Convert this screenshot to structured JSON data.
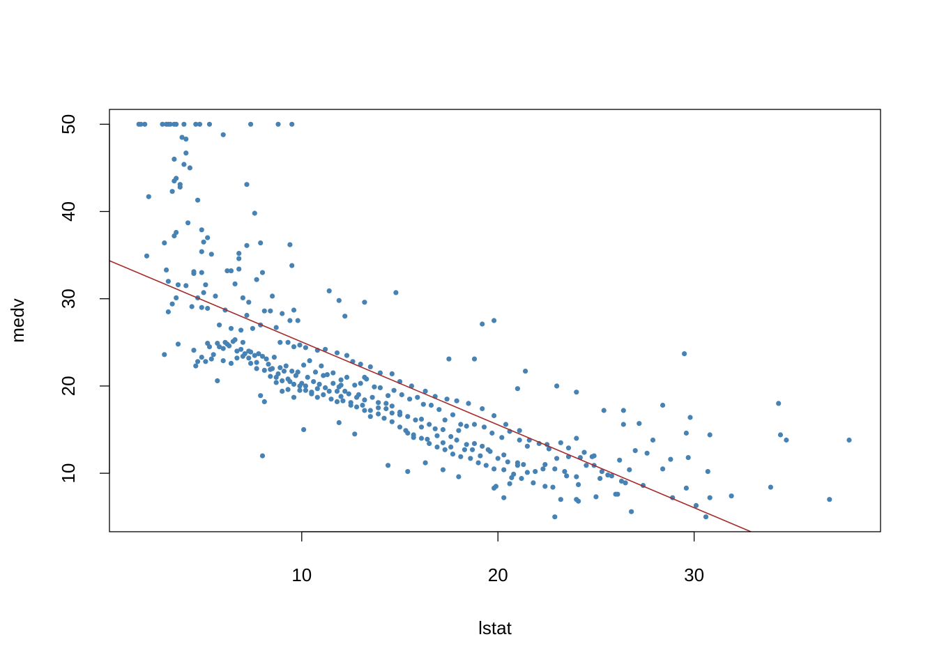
{
  "chart_data": {
    "type": "scatter",
    "title": "",
    "xlabel": "lstat",
    "ylabel": "medv",
    "xlim": [
      0.2,
      39.5
    ],
    "ylim": [
      3.3,
      51.7
    ],
    "x_ticks": [
      10,
      20,
      30
    ],
    "y_ticks": [
      10,
      20,
      30,
      40,
      50
    ],
    "grid": false,
    "legend": "none",
    "point_color": "#4682B4",
    "line_color": "#A52A2A",
    "regression_line": {
      "intercept": 34.55,
      "slope": -0.95
    },
    "points": [
      [
        1.7,
        50
      ],
      [
        1.8,
        50
      ],
      [
        2.0,
        50
      ],
      [
        2.9,
        50
      ],
      [
        3.1,
        50
      ],
      [
        3.2,
        50
      ],
      [
        3.3,
        50
      ],
      [
        3.5,
        50
      ],
      [
        3.6,
        50
      ],
      [
        4.0,
        50
      ],
      [
        4.6,
        50
      ],
      [
        4.8,
        50
      ],
      [
        5.3,
        50
      ],
      [
        7.4,
        50
      ],
      [
        8.8,
        50
      ],
      [
        9.5,
        50
      ],
      [
        6.0,
        48.8
      ],
      [
        3.9,
        48.5
      ],
      [
        4.1,
        48.3
      ],
      [
        4.1,
        46.7
      ],
      [
        3.5,
        46.0
      ],
      [
        4.3,
        45.0
      ],
      [
        4.0,
        45.4
      ],
      [
        3.6,
        43.8
      ],
      [
        3.5,
        43.5
      ],
      [
        3.8,
        43.1
      ],
      [
        3.8,
        42.8
      ],
      [
        3.4,
        42.3
      ],
      [
        2.2,
        41.7
      ],
      [
        4.7,
        41.3
      ],
      [
        7.2,
        43.1
      ],
      [
        3.6,
        37.6
      ],
      [
        3.5,
        37.2
      ],
      [
        4.2,
        38.7
      ],
      [
        7.6,
        39.8
      ],
      [
        4.9,
        37.9
      ],
      [
        5.2,
        37.0
      ],
      [
        5.0,
        36.5
      ],
      [
        7.9,
        36.4
      ],
      [
        7.2,
        36.1
      ],
      [
        9.4,
        36.2
      ],
      [
        3.0,
        36.4
      ],
      [
        2.1,
        34.9
      ],
      [
        4.9,
        35.4
      ],
      [
        5.4,
        35.1
      ],
      [
        6.8,
        35.2
      ],
      [
        6.8,
        34.6
      ],
      [
        8.0,
        33.0
      ],
      [
        9.5,
        33.8
      ],
      [
        3.1,
        33.3
      ],
      [
        4.5,
        33.1
      ],
      [
        4.5,
        32.9
      ],
      [
        4.9,
        33.0
      ],
      [
        6.2,
        33.2
      ],
      [
        6.4,
        33.2
      ],
      [
        6.8,
        33.4
      ],
      [
        7.7,
        32.2
      ],
      [
        3.2,
        32.0
      ],
      [
        3.7,
        31.6
      ],
      [
        4.1,
        31.5
      ],
      [
        5.1,
        31.6
      ],
      [
        6.6,
        31.7
      ],
      [
        5.0,
        30.7
      ],
      [
        5.6,
        30.3
      ],
      [
        3.6,
        30.1
      ],
      [
        4.7,
        30.1
      ],
      [
        3.4,
        29.4
      ],
      [
        4.9,
        29.0
      ],
      [
        6.1,
        28.7
      ],
      [
        7.2,
        28.1
      ],
      [
        8.1,
        28.6
      ],
      [
        8.4,
        28.6
      ],
      [
        7.0,
        30.1
      ],
      [
        7.3,
        29.6
      ],
      [
        9.6,
        28.7
      ],
      [
        9.0,
        28.3
      ],
      [
        9.8,
        27.5
      ],
      [
        11.4,
        30.9
      ],
      [
        11.9,
        29.8
      ],
      [
        13.2,
        29.6
      ],
      [
        14.8,
        30.7
      ],
      [
        12.2,
        28.0
      ],
      [
        8.5,
        30.3
      ],
      [
        7.9,
        27.0
      ],
      [
        9.4,
        27.5
      ],
      [
        3.2,
        28.5
      ],
      [
        4.4,
        29.1
      ],
      [
        5.2,
        28.9
      ],
      [
        5.8,
        27.0
      ],
      [
        6.4,
        26.6
      ],
      [
        6.9,
        26.4
      ],
      [
        7.5,
        26.6
      ],
      [
        8.7,
        26.7
      ],
      [
        8.9,
        25.0
      ],
      [
        9.3,
        25.0
      ],
      [
        9.6,
        24.5
      ],
      [
        9.9,
        24.7
      ],
      [
        10.2,
        24.4
      ],
      [
        10.8,
        24.1
      ],
      [
        11.2,
        24.2
      ],
      [
        11.8,
        23.8
      ],
      [
        12.3,
        23.5
      ],
      [
        12.6,
        22.8
      ],
      [
        13.0,
        22.5
      ],
      [
        13.5,
        22.2
      ],
      [
        14.0,
        21.5
      ],
      [
        14.6,
        21.4
      ],
      [
        15.0,
        20.5
      ],
      [
        15.6,
        20.0
      ],
      [
        16.3,
        19.4
      ],
      [
        16.8,
        18.8
      ],
      [
        17.4,
        18.5
      ],
      [
        17.9,
        18.3
      ],
      [
        18.5,
        18.0
      ],
      [
        19.2,
        17.4
      ],
      [
        19.8,
        16.6
      ],
      [
        20.4,
        15.6
      ],
      [
        21.1,
        14.9
      ],
      [
        21.6,
        13.8
      ],
      [
        22.5,
        13.3
      ],
      [
        23.2,
        13.5
      ],
      [
        23.6,
        12.9
      ],
      [
        24.0,
        14.0
      ],
      [
        24.4,
        12.4
      ],
      [
        24.9,
        12.0
      ],
      [
        25.6,
        9.8
      ],
      [
        26.1,
        7.6
      ],
      [
        26.5,
        8.9
      ],
      [
        27.4,
        8.6
      ],
      [
        28.4,
        10.5
      ],
      [
        28.9,
        7.2
      ],
      [
        29.6,
        8.3
      ],
      [
        30.1,
        6.3
      ],
      [
        30.6,
        5.0
      ],
      [
        3.7,
        24.8
      ],
      [
        4.7,
        22.8
      ],
      [
        4.9,
        23.3
      ],
      [
        5.1,
        22.8
      ],
      [
        5.4,
        23.1
      ],
      [
        5.7,
        20.6
      ],
      [
        6.0,
        22.9
      ],
      [
        6.4,
        22.6
      ],
      [
        6.7,
        23.2
      ],
      [
        7.1,
        23.7
      ],
      [
        7.4,
        22.6
      ],
      [
        7.7,
        22.0
      ],
      [
        7.9,
        18.9
      ],
      [
        8.1,
        18.2
      ],
      [
        8.4,
        21.9
      ],
      [
        8.7,
        20.4
      ],
      [
        9.0,
        19.4
      ],
      [
        9.3,
        19.6
      ],
      [
        9.6,
        18.7
      ],
      [
        9.9,
        19.5
      ],
      [
        10.2,
        20.0
      ],
      [
        10.5,
        19.1
      ],
      [
        10.8,
        19.7
      ],
      [
        11.1,
        21.2
      ],
      [
        11.4,
        19.4
      ],
      [
        11.8,
        19.4
      ],
      [
        12.0,
        18.8
      ],
      [
        12.4,
        19.1
      ],
      [
        12.8,
        18.7
      ],
      [
        13.1,
        17.8
      ],
      [
        13.5,
        17.2
      ],
      [
        13.9,
        17.5
      ],
      [
        14.3,
        17.4
      ],
      [
        14.6,
        16.9
      ],
      [
        15.0,
        16.7
      ],
      [
        15.3,
        14.9
      ],
      [
        15.7,
        14.1
      ],
      [
        16.1,
        15.3
      ],
      [
        16.4,
        13.9
      ],
      [
        16.8,
        15.1
      ],
      [
        17.2,
        13.5
      ],
      [
        17.6,
        13.0
      ],
      [
        17.9,
        13.8
      ],
      [
        18.3,
        12.7
      ],
      [
        18.7,
        12.7
      ],
      [
        19.1,
        12.0
      ],
      [
        19.5,
        12.7
      ],
      [
        19.9,
        8.5
      ],
      [
        20.3,
        12.1
      ],
      [
        20.7,
        9.5
      ],
      [
        21.0,
        10.9
      ],
      [
        21.5,
        10.1
      ],
      [
        22.3,
        10.5
      ],
      [
        22.8,
        8.4
      ],
      [
        23.4,
        10.2
      ],
      [
        24.1,
        8.7
      ],
      [
        24.9,
        10.9
      ],
      [
        25.8,
        9.7
      ],
      [
        26.7,
        10.4
      ],
      [
        27.9,
        13.8
      ],
      [
        28.8,
        11.6
      ],
      [
        29.7,
        11.8
      ],
      [
        30.7,
        10.2
      ],
      [
        30.8,
        7.2
      ],
      [
        5.8,
        24.5
      ],
      [
        6.2,
        24.8
      ],
      [
        6.5,
        25.1
      ],
      [
        6.9,
        24.2
      ],
      [
        7.3,
        24.0
      ],
      [
        7.6,
        23.5
      ],
      [
        8.0,
        23.4
      ],
      [
        8.3,
        22.5
      ],
      [
        8.6,
        23.3
      ],
      [
        8.9,
        22.1
      ],
      [
        9.2,
        22.3
      ],
      [
        9.5,
        21.7
      ],
      [
        9.8,
        21.6
      ],
      [
        10.1,
        22.4
      ],
      [
        10.4,
        22.9
      ],
      [
        10.7,
        21.6
      ],
      [
        11.0,
        22.3
      ],
      [
        11.3,
        21.3
      ],
      [
        11.6,
        21.5
      ],
      [
        12.0,
        20.7
      ],
      [
        12.3,
        21.0
      ],
      [
        12.7,
        20.1
      ],
      [
        13.0,
        20.3
      ],
      [
        13.3,
        20.8
      ],
      [
        13.7,
        19.9
      ],
      [
        14.0,
        19.8
      ],
      [
        14.4,
        18.9
      ],
      [
        14.7,
        19.5
      ],
      [
        15.1,
        19.0
      ],
      [
        15.5,
        18.5
      ],
      [
        15.9,
        18.7
      ],
      [
        16.2,
        17.9
      ],
      [
        16.6,
        17.8
      ],
      [
        17.0,
        17.3
      ],
      [
        17.3,
        16.1
      ],
      [
        17.7,
        16.7
      ],
      [
        18.1,
        15.6
      ],
      [
        18.4,
        15.4
      ],
      [
        18.8,
        15.6
      ],
      [
        19.3,
        15.3
      ],
      [
        19.7,
        14.6
      ],
      [
        20.2,
        14.1
      ],
      [
        20.6,
        14.8
      ],
      [
        21.1,
        13.8
      ],
      [
        21.5,
        13.1
      ],
      [
        22.1,
        13.4
      ],
      [
        22.6,
        12.8
      ],
      [
        23.0,
        11.7
      ],
      [
        23.6,
        11.9
      ],
      [
        24.2,
        11.8
      ],
      [
        24.8,
        11.9
      ],
      [
        25.3,
        10.2
      ],
      [
        26.2,
        11.5
      ],
      [
        27.0,
        12.6
      ],
      [
        27.6,
        12.3
      ],
      [
        4.6,
        22.3
      ],
      [
        5.3,
        24.5
      ],
      [
        5.7,
        24.9
      ],
      [
        6.1,
        25.0
      ],
      [
        6.6,
        25.3
      ],
      [
        7.0,
        25.0
      ],
      [
        7.4,
        23.9
      ],
      [
        7.8,
        23.7
      ],
      [
        8.2,
        23.1
      ],
      [
        8.5,
        22.0
      ],
      [
        8.8,
        21.4
      ],
      [
        9.1,
        21.7
      ],
      [
        9.4,
        20.5
      ],
      [
        9.7,
        21.2
      ],
      [
        10.0,
        20.3
      ],
      [
        10.3,
        21.0
      ],
      [
        10.6,
        20.5
      ],
      [
        10.9,
        20.2
      ],
      [
        11.2,
        19.8
      ],
      [
        11.6,
        20.3
      ],
      [
        11.9,
        19.9
      ],
      [
        12.2,
        19.4
      ],
      [
        12.5,
        18.1
      ],
      [
        12.9,
        19.0
      ],
      [
        13.2,
        18.4
      ],
      [
        13.6,
        18.7
      ],
      [
        13.9,
        18.1
      ],
      [
        14.3,
        18.0
      ],
      [
        14.6,
        17.7
      ],
      [
        15.0,
        17.0
      ],
      [
        15.4,
        16.5
      ],
      [
        15.8,
        16.1
      ],
      [
        16.1,
        16.2
      ],
      [
        16.5,
        15.6
      ],
      [
        16.9,
        14.3
      ],
      [
        17.2,
        15.0
      ],
      [
        17.6,
        14.2
      ],
      [
        18.0,
        14.9
      ],
      [
        18.4,
        13.3
      ],
      [
        18.8,
        13.4
      ],
      [
        19.2,
        13.1
      ],
      [
        19.6,
        12.5
      ],
      [
        20.0,
        11.7
      ],
      [
        20.5,
        11.3
      ],
      [
        21.0,
        11.2
      ],
      [
        21.3,
        11.0
      ],
      [
        21.9,
        10.2
      ],
      [
        22.4,
        11.0
      ],
      [
        22.9,
        10.5
      ],
      [
        23.5,
        9.7
      ],
      [
        24.0,
        9.6
      ],
      [
        24.5,
        10.9
      ],
      [
        25.2,
        9.4
      ],
      [
        26.3,
        9.1
      ],
      [
        3.0,
        23.6
      ],
      [
        4.5,
        24.1
      ],
      [
        5.2,
        24.9
      ],
      [
        5.5,
        23.6
      ],
      [
        6.0,
        24.3
      ],
      [
        6.3,
        24.6
      ],
      [
        6.7,
        24.0
      ],
      [
        7.0,
        23.4
      ],
      [
        7.3,
        23.2
      ],
      [
        7.7,
        22.7
      ],
      [
        8.1,
        21.8
      ],
      [
        8.4,
        21.1
      ],
      [
        8.7,
        21.0
      ],
      [
        9.0,
        20.6
      ],
      [
        9.3,
        20.8
      ],
      [
        9.6,
        20.2
      ],
      [
        9.9,
        20.0
      ],
      [
        10.2,
        19.5
      ],
      [
        10.5,
        19.3
      ],
      [
        10.8,
        18.7
      ],
      [
        11.1,
        19.0
      ],
      [
        11.5,
        18.5
      ],
      [
        11.8,
        18.2
      ],
      [
        12.1,
        18.3
      ],
      [
        12.5,
        17.8
      ],
      [
        12.8,
        17.6
      ],
      [
        13.2,
        17.2
      ],
      [
        13.5,
        16.5
      ],
      [
        13.9,
        16.8
      ],
      [
        14.2,
        16.3
      ],
      [
        14.6,
        15.9
      ],
      [
        15.0,
        15.3
      ],
      [
        15.4,
        14.6
      ],
      [
        15.7,
        14.4
      ],
      [
        16.1,
        14.0
      ],
      [
        16.5,
        13.4
      ],
      [
        16.9,
        13.0
      ],
      [
        17.3,
        12.7
      ],
      [
        17.7,
        12.2
      ],
      [
        18.1,
        11.9
      ],
      [
        18.6,
        11.7
      ],
      [
        19.0,
        11.2
      ],
      [
        19.4,
        10.9
      ],
      [
        19.8,
        10.5
      ],
      [
        20.3,
        10.4
      ],
      [
        20.8,
        9.9
      ],
      [
        21.2,
        9.4
      ],
      [
        21.8,
        8.9
      ],
      [
        22.4,
        8.5
      ],
      [
        23.2,
        7.0
      ],
      [
        24.1,
        6.8
      ],
      [
        25.0,
        7.3
      ],
      [
        26.0,
        7.6
      ],
      [
        8.0,
        12.0
      ],
      [
        10.1,
        15.0
      ],
      [
        11.9,
        15.8
      ],
      [
        12.7,
        14.5
      ],
      [
        14.4,
        10.9
      ],
      [
        15.4,
        10.2
      ],
      [
        16.3,
        11.2
      ],
      [
        17.2,
        10.4
      ],
      [
        18.0,
        9.6
      ],
      [
        19.8,
        8.3
      ],
      [
        20.3,
        7.2
      ],
      [
        20.6,
        8.8
      ],
      [
        22.9,
        5.0
      ],
      [
        24.0,
        7.0
      ],
      [
        26.8,
        5.6
      ],
      [
        29.8,
        16.4
      ],
      [
        29.6,
        14.6
      ],
      [
        30.8,
        14.4
      ],
      [
        29.5,
        23.7
      ],
      [
        28.4,
        17.8
      ],
      [
        27.2,
        15.7
      ],
      [
        26.4,
        17.2
      ],
      [
        25.4,
        17.2
      ],
      [
        26.4,
        15.6
      ],
      [
        23.0,
        20.0
      ],
      [
        24.0,
        19.3
      ],
      [
        21.4,
        21.7
      ],
      [
        21.0,
        19.7
      ],
      [
        19.8,
        27.5
      ],
      [
        19.2,
        27.1
      ],
      [
        18.8,
        23.1
      ],
      [
        17.5,
        23.1
      ],
      [
        13.2,
        21.0
      ],
      [
        12.0,
        20.1
      ],
      [
        31.9,
        7.4
      ],
      [
        33.9,
        8.4
      ],
      [
        34.3,
        18.0
      ],
      [
        34.4,
        14.4
      ],
      [
        34.7,
        13.8
      ],
      [
        36.9,
        7.0
      ],
      [
        37.9,
        13.8
      ]
    ]
  }
}
